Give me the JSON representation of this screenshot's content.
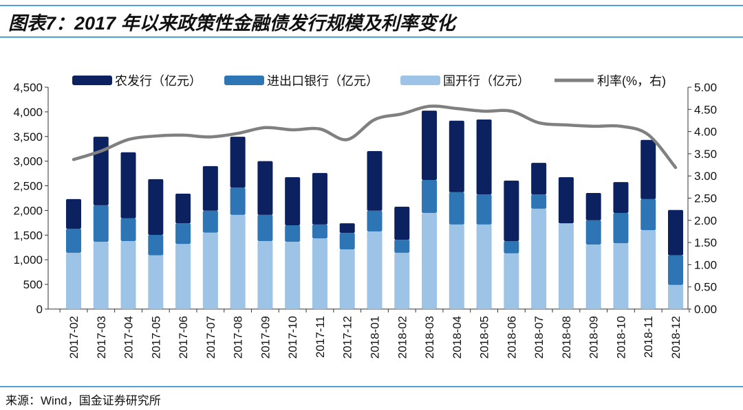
{
  "title": "图表7：2017 年以来政策性金融债发行规模及利率变化",
  "source": "来源：Wind，国金证券研究所",
  "chart_data": {
    "type": "bar",
    "stacked": true,
    "categories": [
      "2017-02",
      "2017-03",
      "2017-04",
      "2017-05",
      "2017-06",
      "2017-07",
      "2017-08",
      "2017-09",
      "2017-10",
      "2017-11",
      "2017-12",
      "2018-01",
      "2018-02",
      "2018-03",
      "2018-04",
      "2018-05",
      "2018-06",
      "2018-07",
      "2018-08",
      "2018-09",
      "2018-10",
      "2018-11",
      "2018-12"
    ],
    "series": [
      {
        "name": "国开行（亿元）",
        "color": "#9dc3e6",
        "axis": "left",
        "values": [
          1140,
          1365,
          1380,
          1090,
          1320,
          1550,
          1910,
          1380,
          1365,
          1435,
          1210,
          1575,
          1140,
          1950,
          1715,
          1715,
          1130,
          2035,
          1740,
          1310,
          1335,
          1600,
          490
        ]
      },
      {
        "name": "进出口银行（亿元）",
        "color": "#2e75b6",
        "axis": "left",
        "values": [
          490,
          740,
          460,
          415,
          420,
          445,
          555,
          530,
          335,
          280,
          335,
          420,
          265,
          670,
          655,
          610,
          250,
          290,
          0,
          490,
          615,
          630,
          600
        ]
      },
      {
        "name": "农发行（亿元）",
        "color": "#0b2160",
        "axis": "left",
        "values": [
          600,
          1390,
          1340,
          1130,
          600,
          905,
          1030,
          1090,
          975,
          1045,
          195,
          1210,
          670,
          1405,
          1450,
          1520,
          1225,
          640,
          935,
          555,
          625,
          1200,
          920
        ]
      },
      {
        "name": "利率(%，右)",
        "type": "line",
        "color": "#808080",
        "axis": "right",
        "values": [
          3.37,
          3.56,
          3.82,
          3.9,
          3.92,
          3.88,
          3.96,
          4.09,
          4.04,
          4.06,
          3.82,
          4.27,
          4.4,
          4.57,
          4.52,
          4.46,
          4.46,
          4.2,
          4.15,
          4.12,
          4.12,
          3.93,
          3.19
        ]
      }
    ],
    "legend_order": [
      2,
      1,
      0,
      3
    ],
    "yleft": {
      "lim": [
        0,
        4500
      ],
      "ticks": [
        "0",
        "500",
        "1,000",
        "1,500",
        "2,000",
        "2,500",
        "3,000",
        "3,500",
        "4,000",
        "4,500"
      ]
    },
    "yright": {
      "lim": [
        0,
        5
      ],
      "ticks": [
        "0.00",
        "0.50",
        "1.00",
        "1.50",
        "2.00",
        "2.50",
        "3.00",
        "3.50",
        "4.00",
        "4.50",
        "5.00"
      ]
    },
    "legend": "top",
    "grid": false
  }
}
